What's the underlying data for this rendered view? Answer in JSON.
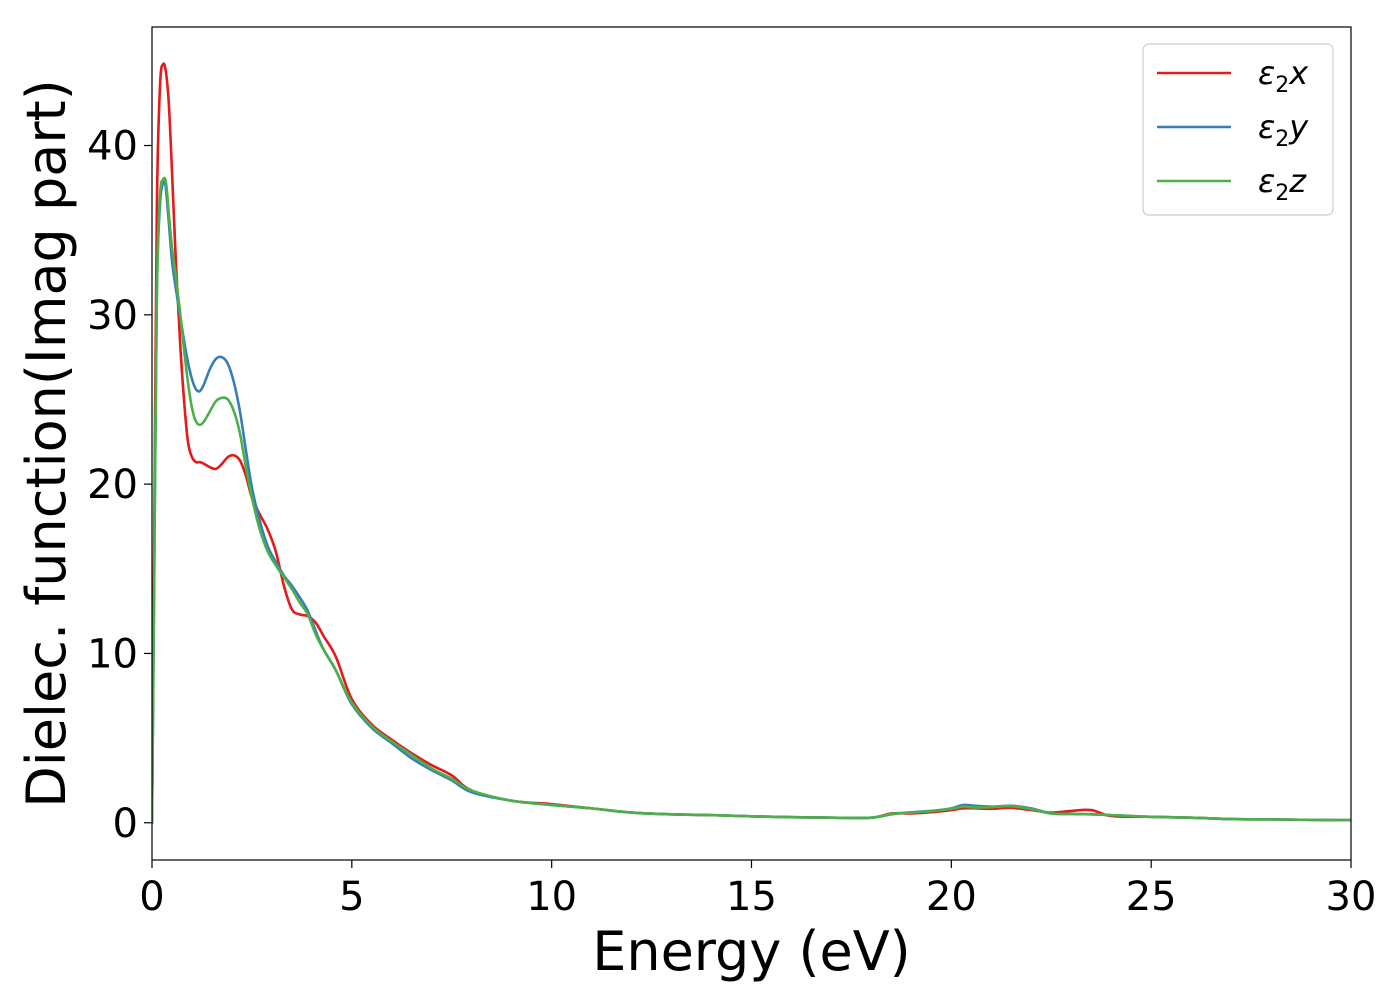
{
  "chart_data": {
    "type": "line",
    "xlabel": "Energy (eV)",
    "ylabel": "Dielec. function(Imag part)",
    "xlim": [
      0,
      30
    ],
    "ylim": [
      -2.2,
      47
    ],
    "xticks": [
      "0",
      "5",
      "10",
      "15",
      "20",
      "25",
      "30"
    ],
    "yticks": [
      "0",
      "10",
      "20",
      "30",
      "40"
    ],
    "grid": false,
    "legend_position": "top-right",
    "series": [
      {
        "name": "ε2x",
        "legend": {
          "base": "ε",
          "sub": "2",
          "suffix": "x"
        },
        "color": "#e41a1c",
        "x": [
          0,
          0.05,
          0.12,
          0.2,
          0.28,
          0.35,
          0.42,
          0.5,
          0.6,
          0.7,
          0.8,
          0.9,
          1.0,
          1.1,
          1.2,
          1.3,
          1.45,
          1.6,
          1.75,
          1.9,
          2.05,
          2.2,
          2.35,
          2.5,
          2.7,
          2.9,
          3.1,
          3.3,
          3.5,
          3.7,
          3.9,
          4.1,
          4.3,
          4.6,
          5.0,
          5.5,
          6.0,
          6.5,
          7.0,
          7.5,
          8.0,
          9.0,
          10.0,
          11.0,
          12.0,
          13.0,
          14.0,
          15.0,
          16.0,
          17.0,
          18.0,
          18.5,
          19.0,
          19.5,
          20.0,
          20.3,
          20.6,
          21.0,
          21.5,
          22.0,
          22.5,
          23.0,
          23.5,
          24.0,
          25.0,
          26.0,
          27.0,
          28.0,
          29.0,
          30.0
        ],
        "y": [
          0,
          15,
          36,
          43.5,
          44.8,
          44.3,
          42.5,
          38.5,
          33.0,
          28.5,
          25.0,
          22.5,
          21.6,
          21.3,
          21.3,
          21.2,
          21.0,
          20.9,
          21.2,
          21.6,
          21.7,
          21.4,
          20.5,
          19.2,
          18.2,
          17.3,
          16.0,
          14.0,
          12.6,
          12.3,
          12.2,
          11.8,
          11.0,
          9.8,
          7.3,
          5.8,
          4.9,
          4.1,
          3.4,
          2.8,
          1.9,
          1.3,
          1.1,
          0.85,
          0.6,
          0.5,
          0.45,
          0.38,
          0.33,
          0.3,
          0.3,
          0.55,
          0.55,
          0.62,
          0.75,
          0.85,
          0.85,
          0.82,
          0.88,
          0.75,
          0.6,
          0.7,
          0.75,
          0.4,
          0.35,
          0.3,
          0.22,
          0.2,
          0.17,
          0.15
        ]
      },
      {
        "name": "ε2y",
        "legend": {
          "base": "ε",
          "sub": "2",
          "suffix": "y"
        },
        "color": "#377eb8",
        "x": [
          0,
          0.05,
          0.12,
          0.2,
          0.28,
          0.34,
          0.42,
          0.5,
          0.6,
          0.7,
          0.8,
          0.9,
          1.0,
          1.1,
          1.2,
          1.3,
          1.45,
          1.6,
          1.75,
          1.9,
          2.05,
          2.2,
          2.35,
          2.5,
          2.7,
          2.9,
          3.1,
          3.3,
          3.5,
          3.7,
          3.9,
          4.1,
          4.3,
          4.6,
          5.0,
          5.5,
          6.0,
          6.5,
          7.0,
          7.5,
          8.0,
          9.0,
          10.0,
          11.0,
          12.0,
          13.0,
          14.0,
          15.0,
          16.0,
          17.0,
          18.0,
          18.5,
          19.0,
          19.5,
          20.0,
          20.3,
          20.6,
          21.0,
          21.5,
          22.0,
          22.5,
          23.0,
          23.5,
          24.0,
          25.0,
          26.0,
          27.0,
          28.0,
          29.0,
          30.0
        ],
        "y": [
          0,
          13,
          31,
          36.5,
          37.8,
          37.6,
          35.5,
          33.2,
          31.5,
          30.0,
          28.5,
          27.2,
          26.2,
          25.6,
          25.5,
          25.9,
          26.8,
          27.4,
          27.5,
          27.1,
          26.0,
          24.3,
          22.0,
          19.8,
          17.8,
          16.3,
          15.4,
          14.6,
          14.0,
          13.3,
          12.5,
          11.3,
          10.2,
          9.0,
          7.0,
          5.6,
          4.7,
          3.8,
          3.1,
          2.5,
          1.8,
          1.3,
          1.05,
          0.85,
          0.6,
          0.5,
          0.45,
          0.38,
          0.33,
          0.3,
          0.3,
          0.5,
          0.62,
          0.7,
          0.85,
          1.05,
          1.0,
          0.95,
          1.0,
          0.85,
          0.55,
          0.52,
          0.5,
          0.45,
          0.35,
          0.3,
          0.22,
          0.2,
          0.17,
          0.15
        ]
      },
      {
        "name": "ε2z",
        "legend": {
          "base": "ε",
          "sub": "2",
          "suffix": "z"
        },
        "color": "#4daf4a",
        "x": [
          0,
          0.05,
          0.12,
          0.2,
          0.28,
          0.35,
          0.42,
          0.5,
          0.6,
          0.7,
          0.8,
          0.9,
          1.0,
          1.1,
          1.2,
          1.3,
          1.45,
          1.6,
          1.75,
          1.9,
          2.05,
          2.2,
          2.35,
          2.5,
          2.7,
          2.9,
          3.1,
          3.3,
          3.5,
          3.7,
          3.9,
          4.1,
          4.3,
          4.6,
          5.0,
          5.5,
          6.0,
          6.5,
          7.0,
          7.5,
          8.0,
          9.0,
          10.0,
          11.0,
          12.0,
          13.0,
          14.0,
          15.0,
          16.0,
          17.0,
          18.0,
          18.5,
          19.0,
          19.5,
          20.0,
          20.3,
          20.6,
          21.0,
          21.5,
          22.0,
          22.5,
          23.0,
          23.5,
          24.0,
          25.0,
          26.0,
          27.0,
          28.0,
          29.0,
          30.0
        ],
        "y": [
          0,
          13,
          31,
          37.0,
          38.0,
          37.8,
          36.0,
          34.0,
          32.2,
          30.2,
          28.0,
          26.0,
          24.5,
          23.7,
          23.5,
          23.7,
          24.3,
          24.9,
          25.1,
          25.0,
          24.3,
          23.0,
          21.0,
          19.2,
          17.3,
          16.0,
          15.2,
          14.5,
          13.8,
          13.0,
          12.3,
          11.1,
          10.2,
          9.0,
          7.1,
          5.7,
          4.8,
          4.0,
          3.2,
          2.6,
          1.9,
          1.3,
          1.05,
          0.85,
          0.6,
          0.5,
          0.45,
          0.38,
          0.33,
          0.3,
          0.3,
          0.52,
          0.6,
          0.68,
          0.82,
          0.95,
          0.9,
          0.92,
          0.98,
          0.8,
          0.55,
          0.52,
          0.5,
          0.45,
          0.35,
          0.3,
          0.22,
          0.2,
          0.17,
          0.15
        ]
      }
    ]
  }
}
